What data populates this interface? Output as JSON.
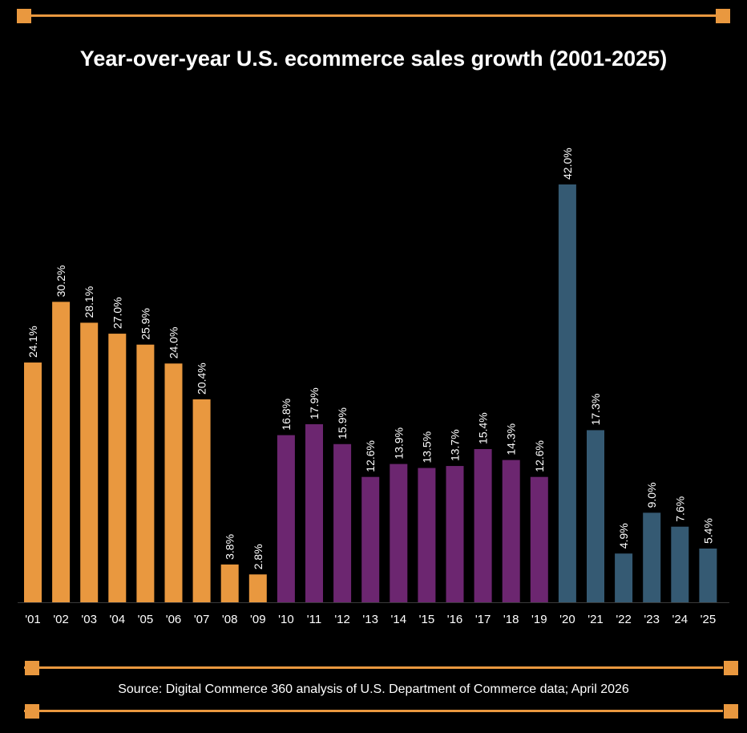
{
  "colors": {
    "background": "#000000",
    "accent": "#E9983F",
    "era_2001_2009": "#E9983F",
    "era_2010_2019": "#6C2670",
    "era_2020_2025": "#355A73",
    "text": "#FFFFFF",
    "axis": "#3A3A3A"
  },
  "header": {
    "title": "Year-over-year U.S. ecommerce sales growth  (2001-2025)"
  },
  "footer": {
    "source": "Source: Digital Commerce 360 analysis of U.S. Department of Commerce data; April 2026"
  },
  "chart_data": {
    "type": "bar",
    "title": "Year-over-year U.S. ecommerce sales growth  (2001-2025)",
    "xlabel": "",
    "ylabel": "",
    "ylim": [
      0,
      42
    ],
    "grid": false,
    "legend": "none",
    "categories": [
      "'01",
      "'02",
      "'03",
      "'04",
      "'05",
      "'06",
      "'07",
      "'08",
      "'09",
      "'10",
      "'11",
      "'12",
      "'13",
      "'14",
      "'15",
      "'16",
      "'17",
      "'18",
      "'19",
      "'20",
      "'21",
      "'22",
      "'23",
      "'24",
      "'25"
    ],
    "values": [
      24.1,
      30.2,
      28.1,
      27.0,
      25.9,
      24.0,
      20.4,
      3.8,
      2.8,
      16.8,
      17.9,
      15.9,
      12.6,
      13.9,
      13.5,
      13.7,
      15.4,
      14.3,
      12.6,
      42.0,
      17.3,
      4.9,
      9.0,
      7.6,
      5.4
    ],
    "labels": [
      "24.1%",
      "30.2%",
      "28.1%",
      "27.0%",
      "25.9%",
      "24.0%",
      "20.4%",
      "3.8%",
      "2.8%",
      "16.8%",
      "17.9%",
      "15.9%",
      "12.6%",
      "13.9%",
      "13.5%",
      "13.7%",
      "15.4%",
      "14.3%",
      "12.6%",
      "42.0%",
      "17.3%",
      "4.9%",
      "9.0%",
      "7.6%",
      "5.4%"
    ],
    "color_groups": [
      "era_2001_2009",
      "era_2001_2009",
      "era_2001_2009",
      "era_2001_2009",
      "era_2001_2009",
      "era_2001_2009",
      "era_2001_2009",
      "era_2001_2009",
      "era_2001_2009",
      "era_2010_2019",
      "era_2010_2019",
      "era_2010_2019",
      "era_2010_2019",
      "era_2010_2019",
      "era_2010_2019",
      "era_2010_2019",
      "era_2010_2019",
      "era_2010_2019",
      "era_2010_2019",
      "era_2020_2025",
      "era_2020_2025",
      "era_2020_2025",
      "era_2020_2025",
      "era_2020_2025",
      "era_2020_2025"
    ]
  }
}
